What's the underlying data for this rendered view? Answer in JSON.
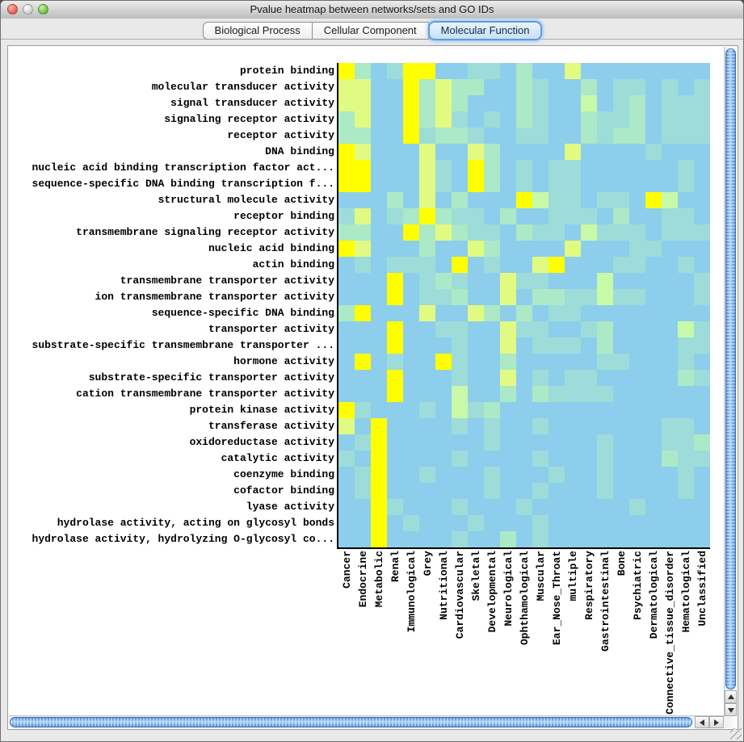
{
  "window": {
    "title": "Pvalue heatmap between networks/sets and GO IDs"
  },
  "tabs": [
    {
      "label": "Biological Process",
      "selected": false
    },
    {
      "label": "Cellular Component",
      "selected": false
    },
    {
      "label": "Molecular Function",
      "selected": true
    }
  ],
  "colors": {
    "tab_selected_ring": "#5E9CE0",
    "scrollbar_thumb": "#4A86D8",
    "panel_background": "#FFFFFF",
    "chrome_background": "#E9E9E9"
  },
  "chart_data": {
    "type": "heatmap",
    "title": "Pvalue heatmap between networks/sets and GO IDs",
    "legend": "none",
    "grid": false,
    "value_scale": "levels 0-5: 0 = least significant (light blue) ... 5 = most significant (yellow)",
    "palette": [
      "#8DCEEC",
      "#9EDCD9",
      "#ACE9C6",
      "#C7F9A8",
      "#E1FA81",
      "#FFFF00"
    ],
    "rows": [
      "protein binding",
      "molecular transducer activity",
      "signal transducer activity",
      "signaling receptor activity",
      "receptor activity",
      "DNA binding",
      "nucleic acid binding transcription factor act...",
      "sequence-specific DNA binding transcription f...",
      "structural molecule activity",
      "receptor binding",
      "transmembrane signaling receptor activity",
      "nucleic acid binding",
      "actin binding",
      "transmembrane transporter activity",
      "ion transmembrane transporter activity",
      "sequence-specific DNA binding",
      "transporter activity",
      "substrate-specific transmembrane transporter ...",
      "hormone activity",
      "substrate-specific transporter activity",
      "cation transmembrane transporter activity",
      "protein kinase activity",
      "transferase activity",
      "oxidoreductase activity",
      "catalytic activity",
      "coenzyme binding",
      "cofactor binding",
      "lyase activity",
      "hydrolase activity, acting on glycosyl bonds",
      "hydrolase activity, hydrolyzing O-glycosyl co..."
    ],
    "columns": [
      "Cancer",
      "Endocrine",
      "Metabolic",
      "Renal",
      "Immunological",
      "Grey",
      "Nutritional",
      "Cardiovascular",
      "Skeletal",
      "Developmental",
      "Neurological",
      "Ophthamological",
      "Muscular",
      "Ear_Nose_Throat",
      "multiple",
      "Respiratory",
      "Gastrointestinal",
      "Bone",
      "Psychiatric",
      "Dermatological",
      "Connective_tissue_disorder",
      "Hematological",
      "Unclassified"
    ],
    "matrix": [
      [
        5,
        2,
        0,
        1,
        5,
        5,
        0,
        0,
        1,
        1,
        0,
        2,
        0,
        0,
        4,
        0,
        0,
        0,
        0,
        0,
        0,
        0,
        0
      ],
      [
        4,
        4,
        0,
        0,
        5,
        2,
        4,
        2,
        2,
        0,
        0,
        2,
        1,
        0,
        0,
        2,
        0,
        1,
        1,
        0,
        1,
        0,
        1
      ],
      [
        4,
        4,
        0,
        0,
        5,
        2,
        4,
        2,
        0,
        0,
        0,
        2,
        1,
        0,
        0,
        3,
        0,
        1,
        2,
        0,
        1,
        1,
        1
      ],
      [
        2,
        4,
        0,
        0,
        5,
        2,
        4,
        1,
        0,
        1,
        0,
        2,
        1,
        0,
        0,
        2,
        1,
        1,
        2,
        0,
        1,
        1,
        1
      ],
      [
        2,
        2,
        0,
        0,
        5,
        1,
        2,
        2,
        1,
        0,
        0,
        1,
        1,
        0,
        0,
        2,
        1,
        2,
        2,
        0,
        1,
        1,
        1
      ],
      [
        5,
        4,
        0,
        0,
        0,
        4,
        0,
        0,
        4,
        2,
        0,
        0,
        0,
        0,
        4,
        0,
        0,
        0,
        0,
        1,
        0,
        0,
        0
      ],
      [
        5,
        5,
        0,
        0,
        0,
        4,
        1,
        0,
        5,
        2,
        0,
        1,
        0,
        1,
        1,
        0,
        0,
        0,
        0,
        0,
        0,
        1,
        0
      ],
      [
        5,
        5,
        0,
        0,
        0,
        4,
        1,
        0,
        5,
        2,
        0,
        1,
        0,
        1,
        1,
        0,
        0,
        0,
        0,
        0,
        0,
        1,
        0
      ],
      [
        0,
        0,
        0,
        2,
        0,
        4,
        0,
        2,
        0,
        0,
        0,
        5,
        3,
        1,
        1,
        0,
        1,
        1,
        0,
        5,
        3,
        0,
        0
      ],
      [
        1,
        4,
        0,
        1,
        2,
        5,
        2,
        1,
        1,
        0,
        2,
        0,
        0,
        1,
        1,
        1,
        0,
        2,
        0,
        0,
        1,
        1,
        0
      ],
      [
        2,
        2,
        0,
        0,
        5,
        2,
        4,
        2,
        1,
        1,
        0,
        2,
        1,
        1,
        0,
        3,
        1,
        1,
        1,
        0,
        1,
        1,
        1
      ],
      [
        5,
        4,
        0,
        0,
        0,
        2,
        0,
        0,
        4,
        2,
        0,
        0,
        0,
        0,
        4,
        0,
        0,
        0,
        1,
        1,
        0,
        0,
        0
      ],
      [
        0,
        1,
        0,
        1,
        1,
        1,
        0,
        5,
        0,
        1,
        0,
        0,
        4,
        5,
        0,
        0,
        0,
        1,
        1,
        0,
        0,
        1,
        0
      ],
      [
        0,
        0,
        0,
        5,
        0,
        1,
        2,
        1,
        0,
        0,
        4,
        1,
        1,
        0,
        0,
        0,
        3,
        0,
        0,
        0,
        0,
        0,
        1
      ],
      [
        0,
        0,
        0,
        5,
        0,
        1,
        1,
        2,
        0,
        0,
        4,
        0,
        2,
        2,
        1,
        1,
        3,
        1,
        1,
        0,
        0,
        0,
        1
      ],
      [
        2,
        5,
        0,
        0,
        0,
        4,
        0,
        0,
        4,
        2,
        0,
        2,
        0,
        1,
        1,
        0,
        0,
        0,
        0,
        0,
        0,
        0,
        0
      ],
      [
        0,
        0,
        0,
        5,
        0,
        0,
        1,
        1,
        0,
        0,
        4,
        1,
        1,
        0,
        0,
        1,
        2,
        0,
        0,
        0,
        0,
        3,
        1
      ],
      [
        0,
        0,
        0,
        5,
        0,
        0,
        0,
        1,
        0,
        0,
        4,
        0,
        1,
        1,
        1,
        0,
        2,
        0,
        0,
        0,
        0,
        1,
        1
      ],
      [
        0,
        5,
        0,
        1,
        0,
        0,
        5,
        1,
        0,
        0,
        2,
        0,
        0,
        0,
        0,
        0,
        1,
        1,
        0,
        0,
        0,
        1,
        0
      ],
      [
        0,
        0,
        0,
        5,
        0,
        0,
        0,
        1,
        0,
        0,
        4,
        0,
        1,
        0,
        1,
        1,
        0,
        0,
        0,
        0,
        0,
        2,
        1
      ],
      [
        0,
        0,
        0,
        5,
        0,
        0,
        0,
        3,
        0,
        0,
        2,
        0,
        2,
        1,
        1,
        1,
        1,
        0,
        0,
        0,
        0,
        0,
        0
      ],
      [
        5,
        1,
        0,
        0,
        0,
        1,
        0,
        3,
        1,
        2,
        0,
        0,
        0,
        0,
        0,
        0,
        0,
        0,
        0,
        0,
        0,
        0,
        0
      ],
      [
        4,
        0,
        5,
        0,
        0,
        0,
        0,
        1,
        0,
        1,
        0,
        0,
        1,
        0,
        0,
        0,
        0,
        0,
        0,
        0,
        1,
        1,
        0
      ],
      [
        0,
        1,
        5,
        0,
        0,
        0,
        0,
        0,
        0,
        1,
        0,
        0,
        0,
        0,
        0,
        0,
        1,
        0,
        0,
        0,
        1,
        1,
        2
      ],
      [
        1,
        0,
        5,
        0,
        0,
        0,
        0,
        1,
        0,
        0,
        0,
        0,
        1,
        0,
        0,
        0,
        1,
        0,
        0,
        0,
        2,
        1,
        1
      ],
      [
        0,
        1,
        5,
        0,
        0,
        1,
        0,
        0,
        0,
        1,
        0,
        0,
        0,
        1,
        0,
        0,
        1,
        0,
        0,
        0,
        0,
        1,
        0
      ],
      [
        0,
        1,
        5,
        0,
        0,
        0,
        0,
        0,
        0,
        1,
        0,
        0,
        1,
        0,
        0,
        0,
        1,
        0,
        0,
        0,
        0,
        1,
        0
      ],
      [
        0,
        0,
        5,
        1,
        0,
        0,
        0,
        1,
        0,
        0,
        0,
        1,
        0,
        0,
        0,
        0,
        0,
        0,
        1,
        0,
        0,
        0,
        0
      ],
      [
        0,
        0,
        5,
        0,
        1,
        0,
        0,
        0,
        1,
        0,
        0,
        0,
        1,
        0,
        0,
        0,
        0,
        0,
        0,
        0,
        0,
        0,
        0
      ],
      [
        0,
        0,
        5,
        0,
        0,
        0,
        0,
        1,
        0,
        0,
        2,
        0,
        1,
        0,
        0,
        0,
        0,
        0,
        0,
        0,
        0,
        0,
        0
      ]
    ]
  }
}
